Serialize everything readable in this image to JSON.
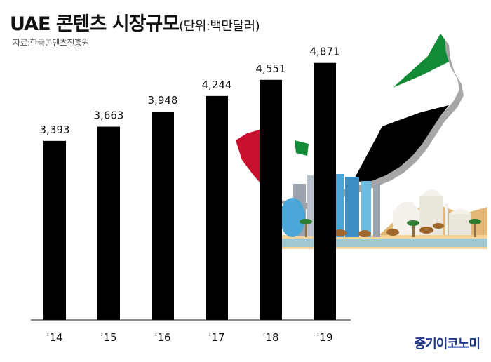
{
  "header": {
    "title": "UAE 콘텐츠 시장규모",
    "unit": "(단위:백만달러)",
    "source": "자료:한국콘텐츠진흥원"
  },
  "brand": "중기이코노미",
  "colors": {
    "bar": "#000000",
    "flag_green": "#138a36",
    "flag_red": "#c8102e",
    "flag_black": "#000000",
    "sand": "#e3b877",
    "sky_tower": "#4aa6d6"
  },
  "chart_data": {
    "type": "bar",
    "title": "UAE 콘텐츠 시장규모",
    "categories": [
      "'14",
      "'15",
      "'16",
      "'17",
      "'18",
      "'19"
    ],
    "values": [
      3393,
      3663,
      3948,
      4244,
      4551,
      4871
    ],
    "value_labels": [
      "3,393",
      "3,663",
      "3,948",
      "4,244",
      "4,551",
      "4,871"
    ],
    "ylim": [
      0,
      5000
    ],
    "grid": false,
    "legend": "none"
  }
}
